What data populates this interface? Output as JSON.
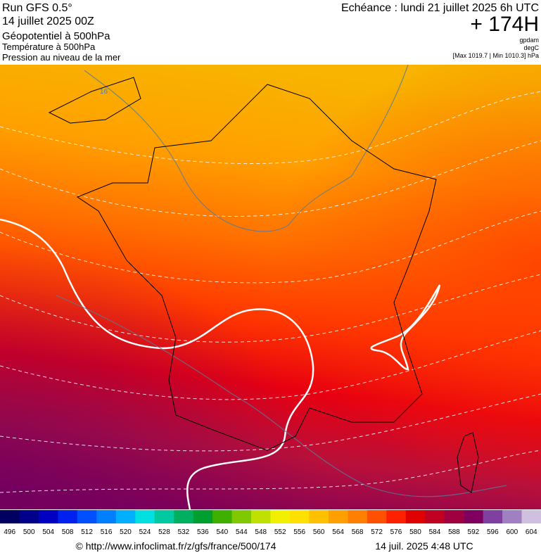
{
  "header": {
    "run": "Run GFS 0.5°",
    "run_date": "14 juillet 2025 00Z",
    "field_1": "Géopotentiel à 500hPa",
    "field_2": "Température à 500hPa",
    "field_3": "Pression au niveau de la mer",
    "valid_time": "Echéance : lundi 21 juillet 2025 6h UTC",
    "lead": "+ 174H",
    "unit_1": "gpdam",
    "unit_2": "degC",
    "pressure_range": "[Max 1019.7 | Min 1010.3] hPa"
  },
  "map": {
    "contour_labels": [
      "16"
    ]
  },
  "colorbar": {
    "ticks": [
      496,
      500,
      504,
      508,
      512,
      516,
      520,
      524,
      528,
      532,
      536,
      540,
      544,
      548,
      552,
      556,
      560,
      564,
      568,
      572,
      576,
      580,
      584,
      588,
      592,
      596,
      600,
      604
    ],
    "colors": [
      "#000060",
      "#00008a",
      "#0000c0",
      "#0020f0",
      "#0050ff",
      "#0080ff",
      "#00b0ff",
      "#00e0e0",
      "#00c8a0",
      "#00b060",
      "#00a030",
      "#40b000",
      "#80c800",
      "#c0e000",
      "#f0f000",
      "#ffe000",
      "#ffc000",
      "#ffa000",
      "#ff8000",
      "#ff5000",
      "#ff2000",
      "#e00000",
      "#c00020",
      "#a00040",
      "#800060",
      "#8040a0",
      "#a080c0",
      "#d0c0e0"
    ]
  },
  "footer": {
    "url": "© http://www.infoclimat.fr/z/gfs/france/500/174",
    "timestamp": "14 juil. 2025  4:48 UTC"
  }
}
